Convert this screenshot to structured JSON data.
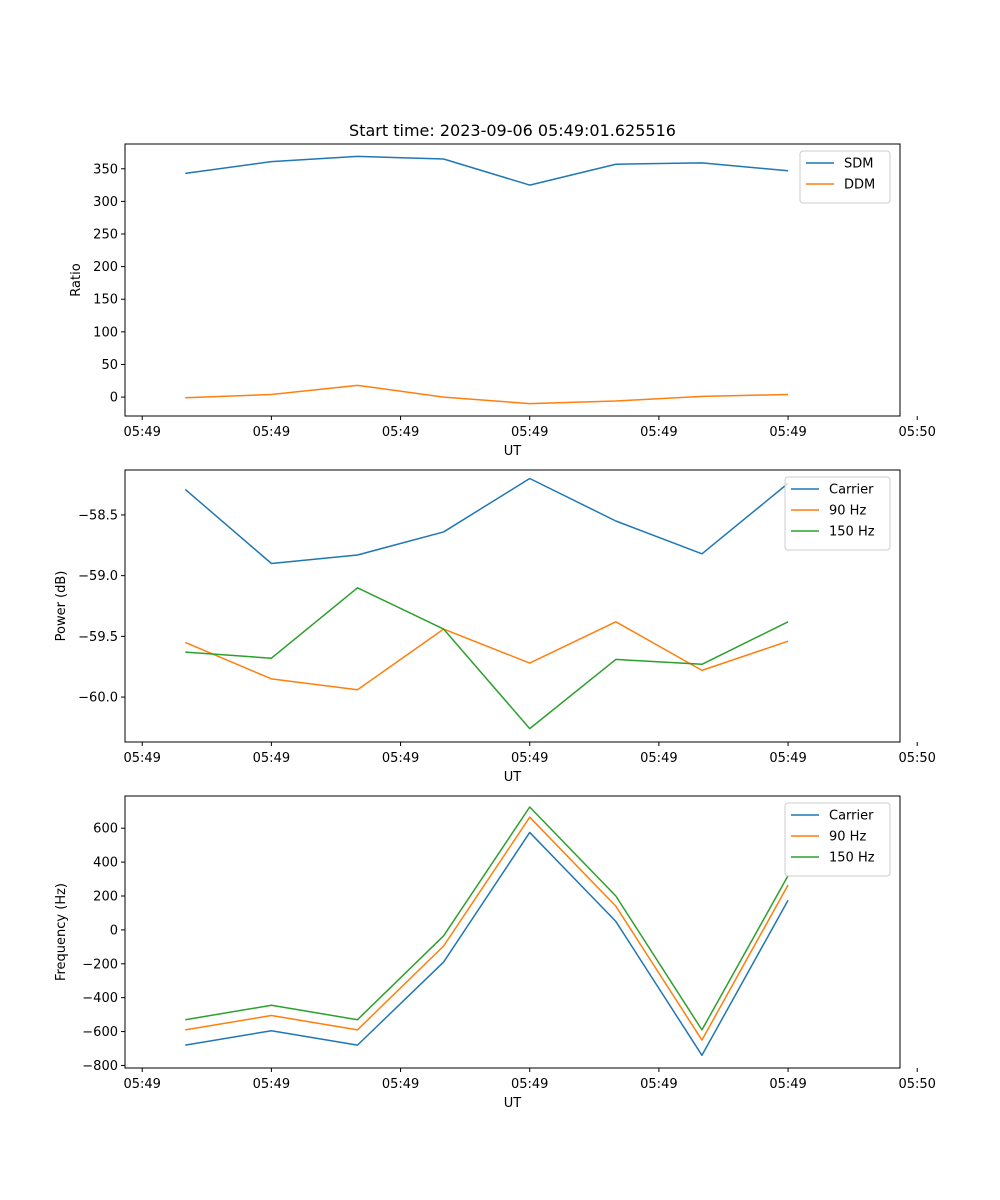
{
  "chart_data": [
    {
      "type": "line",
      "title": "Start time: 2023-09-06 05:49:01.625516",
      "xlabel": "UT",
      "ylabel": "Ratio",
      "x": [
        1,
        2,
        3,
        4,
        5,
        6,
        7,
        8
      ],
      "xlim": [
        0.3,
        9.3
      ],
      "xticks": [
        {
          "value": 0.5,
          "label": "05:49"
        },
        {
          "value": 2.0,
          "label": "05:49"
        },
        {
          "value": 3.5,
          "label": "05:49"
        },
        {
          "value": 5.0,
          "label": "05:49"
        },
        {
          "value": 6.5,
          "label": "05:49"
        },
        {
          "value": 8.0,
          "label": "05:49"
        },
        {
          "value": 9.5,
          "label": "05:50"
        }
      ],
      "ylim": [
        -29,
        388
      ],
      "yticks": [
        0,
        50,
        100,
        150,
        200,
        250,
        300,
        350
      ],
      "ytick_labels": [
        "0",
        "50",
        "100",
        "150",
        "200",
        "250",
        "300",
        "350"
      ],
      "legend_position": "top-right",
      "series": [
        {
          "name": "SDM",
          "color": "#1f77b4",
          "values": [
            343,
            361,
            369,
            365,
            325,
            357,
            359,
            347
          ]
        },
        {
          "name": "DDM",
          "color": "#ff7f0e",
          "values": [
            -1,
            4,
            18,
            0,
            -10,
            -6,
            1,
            4
          ]
        }
      ]
    },
    {
      "type": "line",
      "title": "",
      "xlabel": "UT",
      "ylabel": "Power (dB)",
      "x": [
        1,
        2,
        3,
        4,
        5,
        6,
        7,
        8
      ],
      "xlim": [
        0.3,
        9.3
      ],
      "xticks": [
        {
          "value": 0.5,
          "label": "05:49"
        },
        {
          "value": 2.0,
          "label": "05:49"
        },
        {
          "value": 3.5,
          "label": "05:49"
        },
        {
          "value": 5.0,
          "label": "05:49"
        },
        {
          "value": 6.5,
          "label": "05:49"
        },
        {
          "value": 8.0,
          "label": "05:49"
        },
        {
          "value": 9.5,
          "label": "05:50"
        }
      ],
      "ylim": [
        -60.37,
        -58.13
      ],
      "yticks": [
        -60.0,
        -59.5,
        -59.0,
        -58.5
      ],
      "ytick_labels": [
        "−60.0",
        "−59.5",
        "−59.0",
        "−58.5"
      ],
      "legend_position": "top-right",
      "series": [
        {
          "name": "Carrier",
          "color": "#1f77b4",
          "values": [
            -58.29,
            -58.9,
            -58.83,
            -58.64,
            -58.2,
            -58.55,
            -58.82,
            -58.24
          ]
        },
        {
          "name": "90 Hz",
          "color": "#ff7f0e",
          "values": [
            -59.55,
            -59.85,
            -59.94,
            -59.44,
            -59.72,
            -59.38,
            -59.78,
            -59.54
          ]
        },
        {
          "name": "150 Hz",
          "color": "#2ca02c",
          "values": [
            -59.63,
            -59.68,
            -59.1,
            -59.44,
            -60.26,
            -59.69,
            -59.73,
            -59.38
          ]
        }
      ]
    },
    {
      "type": "line",
      "title": "",
      "xlabel": "UT",
      "ylabel": "Frequency (Hz)",
      "x": [
        1,
        2,
        3,
        4,
        5,
        6,
        7,
        8
      ],
      "xlim": [
        0.3,
        9.3
      ],
      "xticks": [
        {
          "value": 0.5,
          "label": "05:49"
        },
        {
          "value": 2.0,
          "label": "05:49"
        },
        {
          "value": 3.5,
          "label": "05:49"
        },
        {
          "value": 5.0,
          "label": "05:49"
        },
        {
          "value": 6.5,
          "label": "05:49"
        },
        {
          "value": 8.0,
          "label": "05:49"
        },
        {
          "value": 9.5,
          "label": "05:50"
        }
      ],
      "ylim": [
        -815,
        790
      ],
      "yticks": [
        -800,
        -600,
        -400,
        -200,
        0,
        200,
        400,
        600
      ],
      "ytick_labels": [
        "−800",
        "−600",
        "−400",
        "−200",
        "0",
        "200",
        "400",
        "600"
      ],
      "legend_position": "top-right",
      "series": [
        {
          "name": "Carrier",
          "color": "#1f77b4",
          "values": [
            -680,
            -595,
            -680,
            -190,
            575,
            50,
            -740,
            175
          ]
        },
        {
          "name": "90 Hz",
          "color": "#ff7f0e",
          "values": [
            -590,
            -505,
            -590,
            -95,
            665,
            140,
            -650,
            265
          ]
        },
        {
          "name": "150 Hz",
          "color": "#2ca02c",
          "values": [
            -530,
            -445,
            -530,
            -35,
            725,
            200,
            -590,
            320
          ]
        }
      ]
    }
  ]
}
